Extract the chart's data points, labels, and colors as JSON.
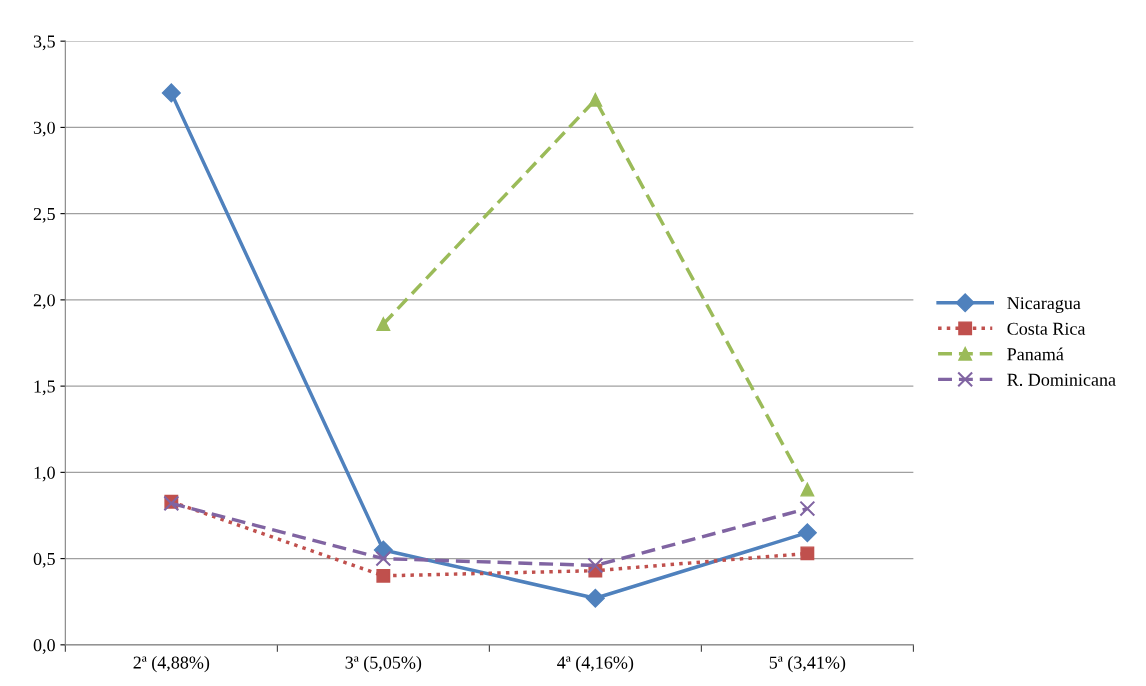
{
  "chart_data": {
    "type": "line",
    "categories": [
      "2ª (4,88%)",
      "3ª (5,05%)",
      "4ª (4,16%)",
      "5ª (3,41%)"
    ],
    "series": [
      {
        "name": "Nicaragua",
        "color": "#4f81bd",
        "values": [
          3.2,
          0.55,
          0.27,
          0.65
        ],
        "marker": "diamond",
        "line_style": "solid"
      },
      {
        "name": "Costa Rica",
        "color": "#c0504d",
        "values": [
          0.83,
          0.4,
          0.43,
          0.53
        ],
        "marker": "square",
        "line_style": "dotted"
      },
      {
        "name": "Panamá",
        "color": "#9bbb59",
        "values": [
          null,
          1.86,
          3.16,
          0.9
        ],
        "marker": "triangle",
        "line_style": "dashed"
      },
      {
        "name": "R. Dominicana",
        "color": "#8064a2",
        "values": [
          0.82,
          0.5,
          0.46,
          0.79
        ],
        "marker": "cross",
        "line_style": "dashed"
      }
    ],
    "ylim": [
      0,
      3.5
    ],
    "yticks": [
      {
        "value": 0,
        "label": "0,0"
      },
      {
        "value": 0.5,
        "label": "0,5"
      },
      {
        "value": 1,
        "label": "1,0"
      },
      {
        "value": 1.5,
        "label": "1,5"
      },
      {
        "value": 2,
        "label": "2,0"
      },
      {
        "value": 2.5,
        "label": "2,5"
      },
      {
        "value": 3,
        "label": "3,0"
      },
      {
        "value": 3.5,
        "label": "3,5"
      }
    ],
    "grid": "y",
    "legend": "right"
  }
}
